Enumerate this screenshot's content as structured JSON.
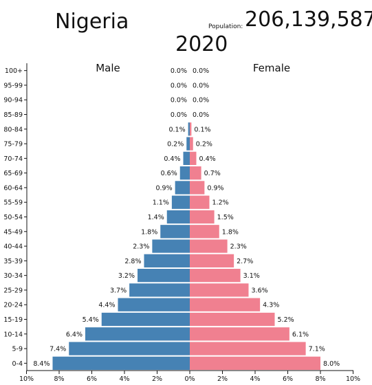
{
  "header": {
    "country": "Nigeria",
    "population_label": "Population:",
    "population_value": "206,139,587",
    "year": "2020"
  },
  "chart_data": {
    "type": "bar",
    "orientation": "horizontal",
    "subtype": "population-pyramid",
    "categories": [
      "100+",
      "95-99",
      "90-94",
      "85-89",
      "80-84",
      "75-79",
      "70-74",
      "65-69",
      "60-64",
      "55-59",
      "50-54",
      "45-49",
      "40-44",
      "35-39",
      "30-34",
      "25-29",
      "20-24",
      "15-19",
      "10-14",
      "5-9",
      "0-4"
    ],
    "series": [
      {
        "name": "Male",
        "color": "#4682b4",
        "values": [
          0.0,
          0.0,
          0.0,
          0.0,
          0.1,
          0.2,
          0.4,
          0.6,
          0.9,
          1.1,
          1.4,
          1.8,
          2.3,
          2.8,
          3.2,
          3.7,
          4.4,
          5.4,
          6.4,
          7.4,
          8.4
        ],
        "value_labels": [
          "0.0%",
          "0.0%",
          "0.0%",
          "0.0%",
          "0.1%",
          "0.2%",
          "0.4%",
          "0.6%",
          "0.9%",
          "1.1%",
          "1.4%",
          "1.8%",
          "2.3%",
          "2.8%",
          "3.2%",
          "3.7%",
          "4.4%",
          "5.4%",
          "6.4%",
          "7.4%",
          "8.4%"
        ]
      },
      {
        "name": "Female",
        "color": "#f08090",
        "values": [
          0.0,
          0.0,
          0.0,
          0.0,
          0.1,
          0.2,
          0.4,
          0.7,
          0.9,
          1.2,
          1.5,
          1.8,
          2.3,
          2.7,
          3.1,
          3.6,
          4.3,
          5.2,
          6.1,
          7.1,
          8.0
        ],
        "value_labels": [
          "0.0%",
          "0.0%",
          "0.0%",
          "0.0%",
          "0.1%",
          "0.2%",
          "0.4%",
          "0.7%",
          "0.9%",
          "1.2%",
          "1.5%",
          "1.8%",
          "2.3%",
          "2.7%",
          "3.1%",
          "3.6%",
          "4.3%",
          "5.2%",
          "6.1%",
          "7.1%",
          "8.0%"
        ]
      }
    ],
    "xlim": [
      -10,
      10
    ],
    "x_ticks": [
      -10,
      -8,
      -6,
      -4,
      -2,
      0,
      2,
      4,
      6,
      8,
      10
    ],
    "x_tick_labels": [
      "10%",
      "8%",
      "6%",
      "4%",
      "2%",
      "0%",
      "2%",
      "4%",
      "6%",
      "8%",
      "10%"
    ],
    "unit": "%"
  }
}
